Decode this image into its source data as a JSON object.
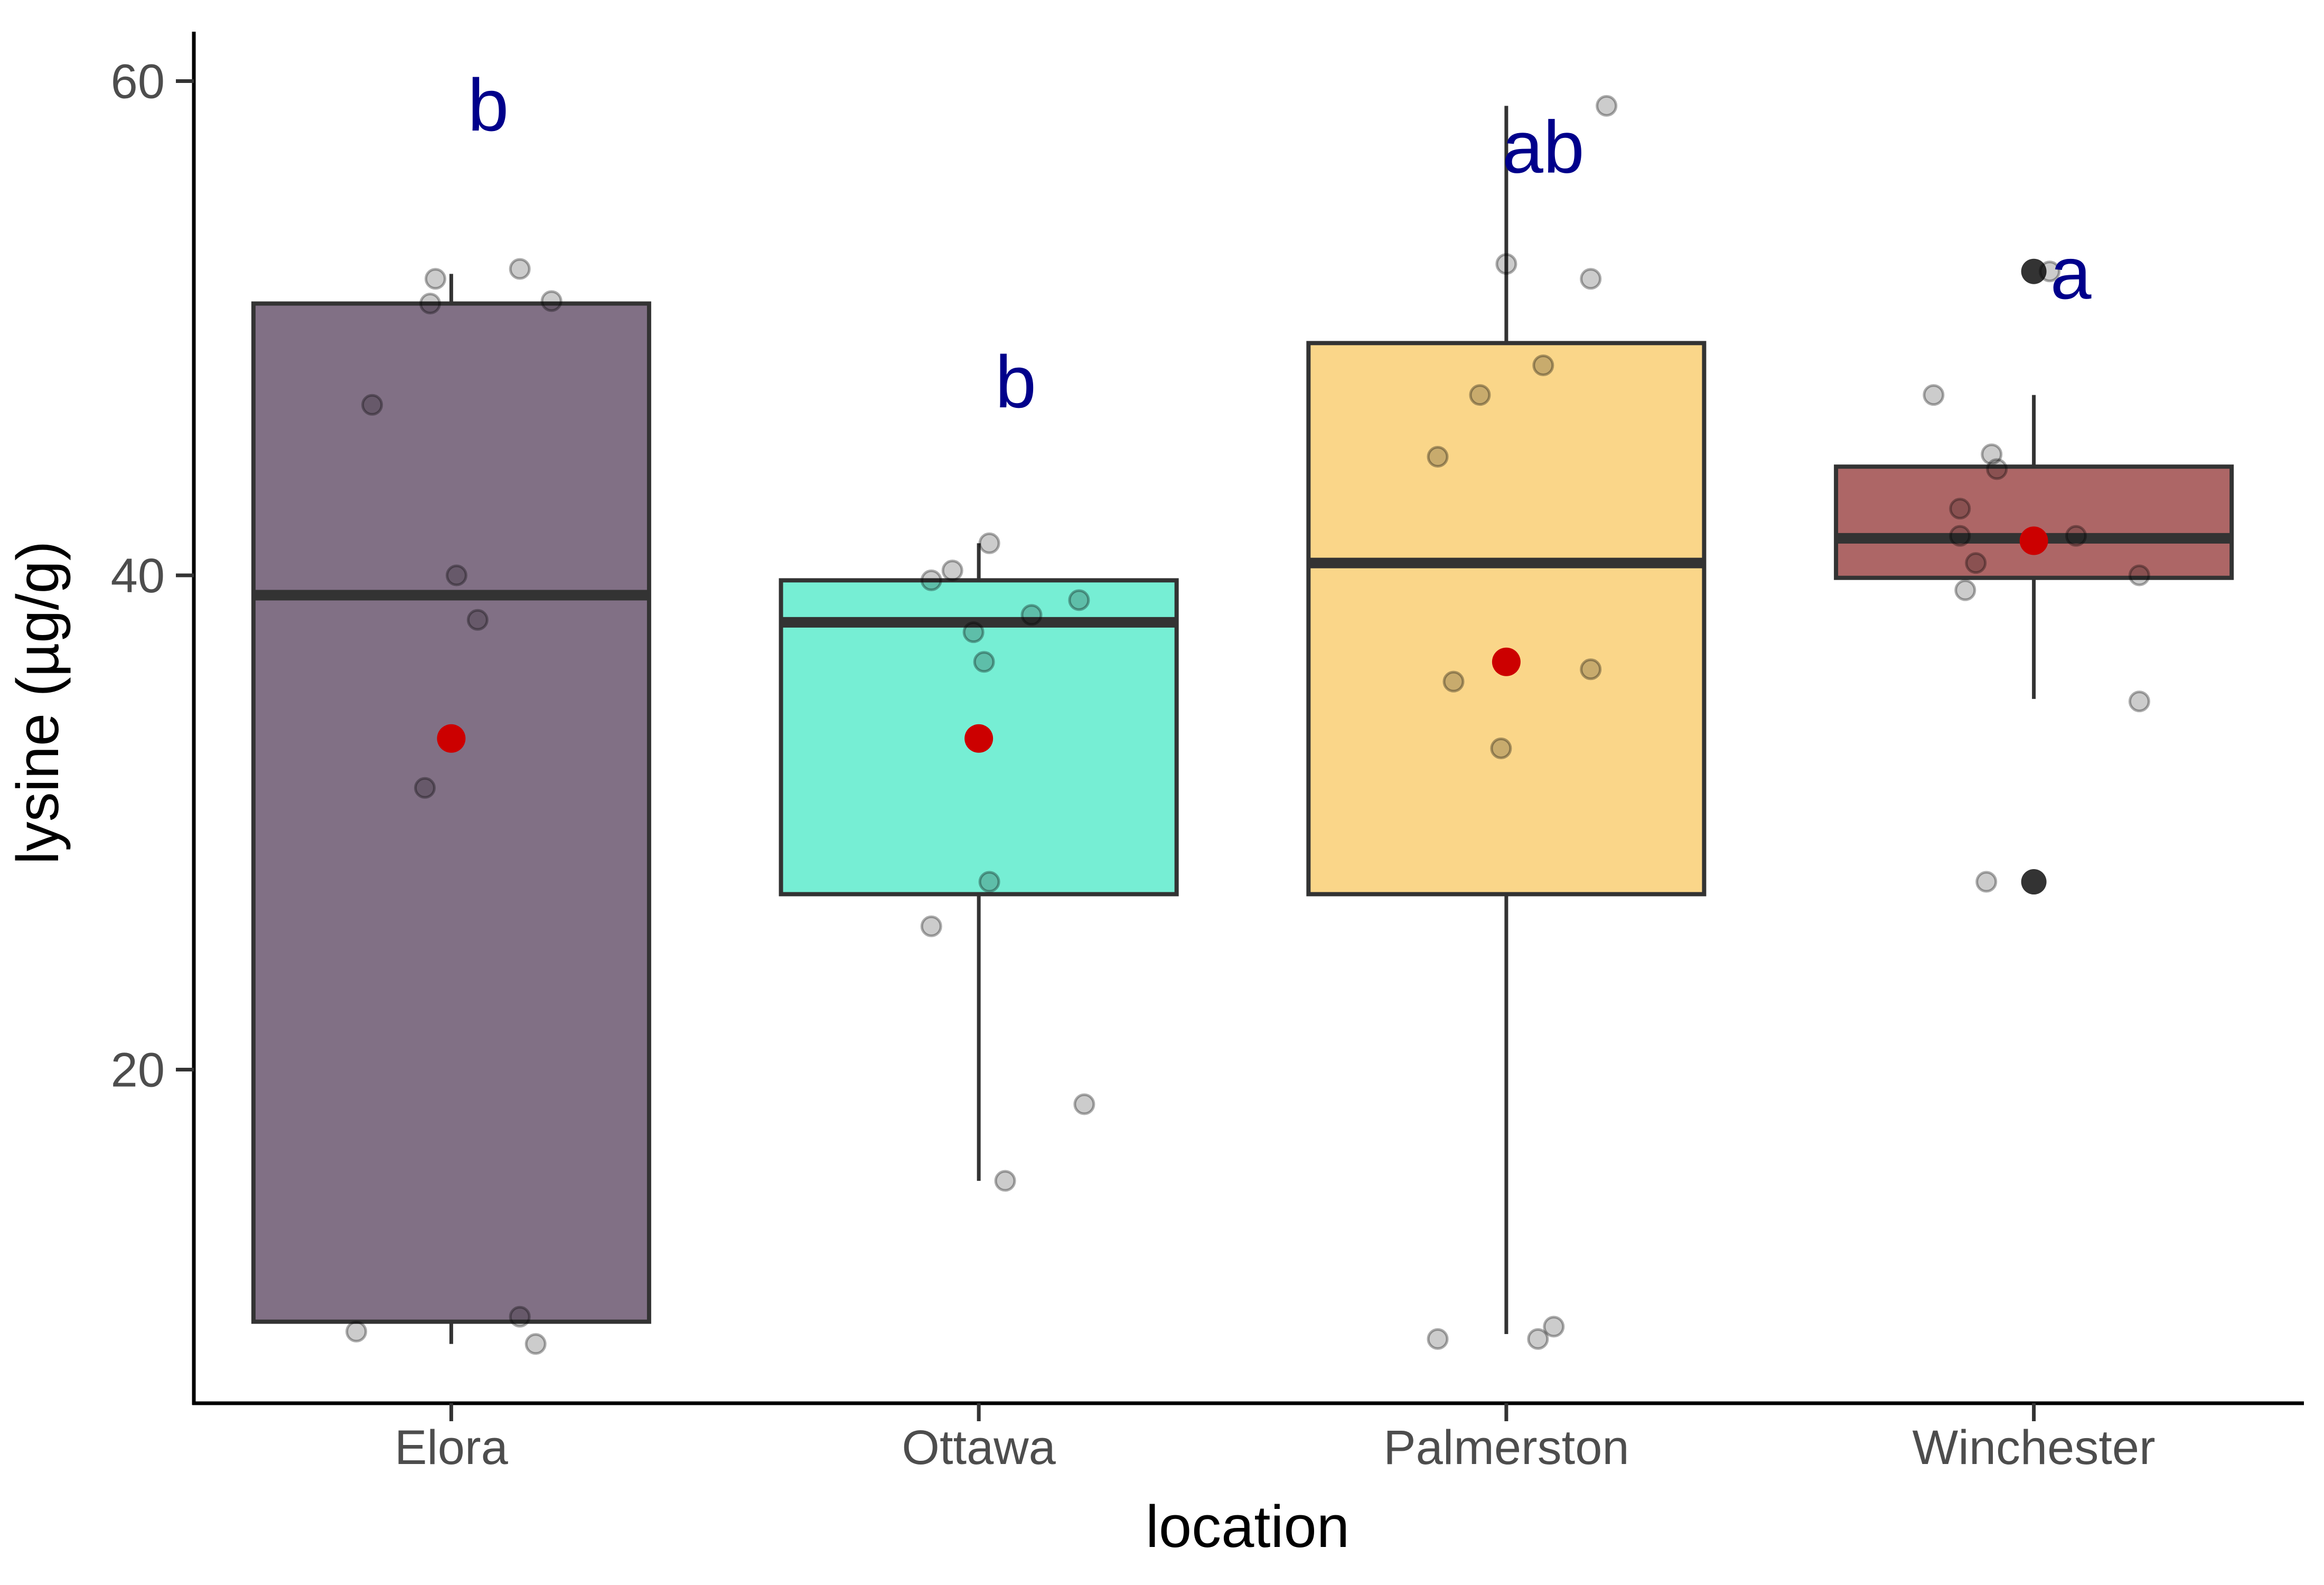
{
  "chart_data": {
    "type": "box",
    "title": "",
    "xlabel": "location",
    "ylabel": "lysine (µg/g)",
    "ylim": [
      6.5,
      62
    ],
    "y_ticks": [
      20,
      40,
      60
    ],
    "y_tick_labels": [
      "20",
      "40",
      "60"
    ],
    "grid": false,
    "legend": "none",
    "categories": [
      "Elora",
      "Ottawa",
      "Palmerston",
      "Winchester"
    ],
    "fill_colors": [
      "#817085",
      "#76EED4",
      "#FAD689",
      "#AD6666"
    ],
    "box_outline_color": "#333333",
    "mean_color": "#CC0000",
    "sig_letter_color": "#00008B",
    "groups": [
      {
        "name": "Elora",
        "letter": "b",
        "letter_y": 58,
        "q1": 9.8,
        "median": 39.2,
        "q3": 51.0,
        "whisker_low": 8.9,
        "whisker_high": 52.2,
        "mean": 33.4,
        "outliers": [],
        "points": [
          [
            -0.18,
            9.4
          ],
          [
            -0.03,
            52.0
          ],
          [
            -0.04,
            51.0
          ],
          [
            0.13,
            52.4
          ],
          [
            0.19,
            51.1
          ],
          [
            -0.15,
            46.9
          ],
          [
            0.01,
            40.0
          ],
          [
            0.05,
            38.2
          ],
          [
            -0.05,
            31.4
          ],
          [
            0.13,
            10.0
          ],
          [
            0.16,
            8.9
          ]
        ]
      },
      {
        "name": "Ottawa",
        "letter": "b",
        "letter_y": 46.8,
        "q1": 27.1,
        "median": 38.1,
        "q3": 39.8,
        "whisker_low": 15.5,
        "whisker_high": 41.3,
        "mean": 33.4,
        "outliers": [],
        "points": [
          [
            0.02,
            41.3
          ],
          [
            -0.05,
            40.2
          ],
          [
            -0.09,
            39.8
          ],
          [
            0.19,
            39.0
          ],
          [
            0.1,
            38.4
          ],
          [
            -0.01,
            37.7
          ],
          [
            0.01,
            36.5
          ],
          [
            0.02,
            27.6
          ],
          [
            -0.09,
            25.8
          ],
          [
            0.2,
            18.6
          ],
          [
            0.05,
            15.5
          ]
        ]
      },
      {
        "name": "Palmerston",
        "letter": "ab",
        "letter_y": 56.3,
        "q1": 27.1,
        "median": 40.5,
        "q3": 49.4,
        "whisker_low": 9.3,
        "whisker_high": 59.0,
        "mean": 36.5,
        "outliers": [],
        "points": [
          [
            0.19,
            59.0
          ],
          [
            0.0,
            52.6
          ],
          [
            0.16,
            52.0
          ],
          [
            0.07,
            48.5
          ],
          [
            -0.05,
            47.3
          ],
          [
            -0.13,
            44.8
          ],
          [
            -0.1,
            35.7
          ],
          [
            0.16,
            36.2
          ],
          [
            -0.01,
            33.0
          ],
          [
            0.09,
            9.6
          ],
          [
            0.06,
            9.1
          ],
          [
            -0.13,
            9.1
          ]
        ]
      },
      {
        "name": "Winchester",
        "letter": "a",
        "letter_y": 51.2,
        "q1": 39.9,
        "median": 41.5,
        "q3": 44.4,
        "whisker_low": 35.0,
        "whisker_high": 47.3,
        "mean": 41.4,
        "outliers": [
          52.3,
          27.6
        ],
        "points": [
          [
            0.03,
            52.3
          ],
          [
            -0.19,
            47.3
          ],
          [
            -0.08,
            44.9
          ],
          [
            -0.07,
            44.3
          ],
          [
            -0.14,
            42.7
          ],
          [
            -0.14,
            41.6
          ],
          [
            0.08,
            41.6
          ],
          [
            -0.11,
            40.5
          ],
          [
            0.2,
            40.0
          ],
          [
            -0.13,
            39.4
          ],
          [
            0.2,
            34.9
          ],
          [
            -0.09,
            27.6
          ]
        ]
      }
    ]
  }
}
